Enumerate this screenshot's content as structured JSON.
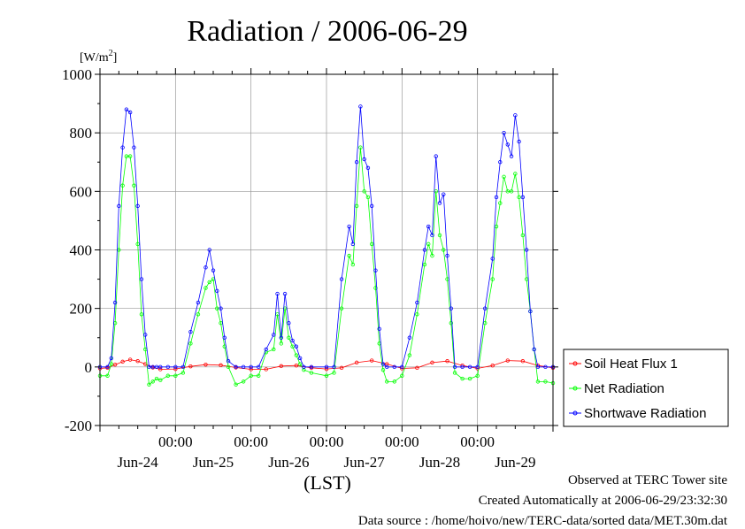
{
  "chart_data": {
    "type": "line",
    "title": "Radiation / 2006-06-29",
    "ylabel_unit": "[W/m",
    "ylabel_sup": "2",
    "ylabel_close": "]",
    "ylim": [
      -200,
      1000
    ],
    "yticks": [
      -200,
      0,
      200,
      400,
      600,
      800,
      1000
    ],
    "ytick_labels": [
      "-200",
      "0",
      "200",
      "400",
      "600",
      "800",
      "1000"
    ],
    "xlim": [
      0,
      6
    ],
    "xticks": [
      1,
      2,
      3,
      4,
      5
    ],
    "xtick_time_label": "00:00",
    "day_labels": [
      {
        "x": 0.5,
        "label": "Jun-24"
      },
      {
        "x": 1.5,
        "label": "Jun-25"
      },
      {
        "x": 2.5,
        "label": "Jun-26"
      },
      {
        "x": 3.5,
        "label": "Jun-27"
      },
      {
        "x": 4.5,
        "label": "Jun-28"
      },
      {
        "x": 5.5,
        "label": "Jun-29"
      }
    ],
    "xlabel": "(LST)",
    "grid": true,
    "legend_position": "right-bottom",
    "series": [
      {
        "name": "Soil Heat Flux 1",
        "color": "#ff0000",
        "x": [
          0.0,
          0.1,
          0.2,
          0.3,
          0.4,
          0.5,
          0.6,
          0.7,
          0.8,
          1.0,
          1.2,
          1.4,
          1.6,
          1.8,
          2.0,
          2.2,
          2.4,
          2.6,
          2.8,
          3.0,
          3.2,
          3.4,
          3.6,
          3.8,
          4.0,
          4.2,
          4.4,
          4.6,
          4.8,
          5.0,
          5.2,
          5.4,
          5.6,
          5.8,
          6.0
        ],
        "y": [
          -5,
          -3,
          8,
          18,
          25,
          20,
          10,
          -2,
          -8,
          -7,
          2,
          8,
          6,
          -2,
          -8,
          -8,
          3,
          5,
          -3,
          -7,
          -3,
          15,
          22,
          10,
          -5,
          -3,
          15,
          20,
          5,
          -5,
          5,
          22,
          20,
          5,
          -3
        ]
      },
      {
        "name": "Net Radiation",
        "color": "#00ff00",
        "x": [
          0.0,
          0.1,
          0.15,
          0.2,
          0.25,
          0.3,
          0.35,
          0.4,
          0.45,
          0.5,
          0.55,
          0.6,
          0.65,
          0.7,
          0.75,
          0.8,
          0.9,
          1.0,
          1.1,
          1.2,
          1.3,
          1.4,
          1.45,
          1.5,
          1.55,
          1.6,
          1.65,
          1.7,
          1.8,
          1.9,
          2.0,
          2.1,
          2.2,
          2.3,
          2.35,
          2.4,
          2.45,
          2.5,
          2.55,
          2.6,
          2.65,
          2.7,
          2.8,
          3.0,
          3.1,
          3.2,
          3.3,
          3.35,
          3.4,
          3.45,
          3.5,
          3.55,
          3.6,
          3.65,
          3.7,
          3.75,
          3.8,
          3.9,
          4.0,
          4.1,
          4.2,
          4.3,
          4.35,
          4.4,
          4.45,
          4.5,
          4.55,
          4.6,
          4.65,
          4.7,
          4.8,
          4.9,
          5.0,
          5.1,
          5.2,
          5.25,
          5.3,
          5.35,
          5.4,
          5.45,
          5.5,
          5.55,
          5.6,
          5.65,
          5.7,
          5.75,
          5.8,
          5.9,
          6.0
        ],
        "y": [
          -30,
          -30,
          10,
          150,
          400,
          620,
          720,
          720,
          620,
          420,
          180,
          60,
          -60,
          -50,
          -40,
          -45,
          -30,
          -30,
          -20,
          80,
          180,
          270,
          290,
          300,
          200,
          150,
          70,
          0,
          -60,
          -50,
          -30,
          -30,
          50,
          60,
          180,
          80,
          200,
          100,
          70,
          40,
          10,
          -10,
          -20,
          -30,
          -20,
          200,
          380,
          350,
          550,
          750,
          600,
          580,
          420,
          270,
          80,
          -10,
          -50,
          -50,
          -30,
          40,
          180,
          350,
          420,
          380,
          600,
          450,
          400,
          300,
          150,
          -20,
          -40,
          -40,
          -30,
          150,
          300,
          480,
          560,
          650,
          600,
          600,
          660,
          580,
          450,
          300,
          190,
          60,
          -50,
          -50,
          -55
        ]
      },
      {
        "name": "Shortwave Radiation",
        "color": "#0000ff",
        "x": [
          0.0,
          0.1,
          0.15,
          0.2,
          0.25,
          0.3,
          0.35,
          0.4,
          0.45,
          0.5,
          0.55,
          0.6,
          0.65,
          0.7,
          0.75,
          0.8,
          0.9,
          1.0,
          1.1,
          1.2,
          1.3,
          1.4,
          1.45,
          1.5,
          1.55,
          1.6,
          1.65,
          1.7,
          1.8,
          1.9,
          2.0,
          2.1,
          2.2,
          2.3,
          2.35,
          2.4,
          2.45,
          2.5,
          2.55,
          2.6,
          2.65,
          2.7,
          2.8,
          3.0,
          3.1,
          3.2,
          3.3,
          3.35,
          3.4,
          3.45,
          3.5,
          3.55,
          3.6,
          3.65,
          3.7,
          3.75,
          3.8,
          3.9,
          4.0,
          4.1,
          4.2,
          4.3,
          4.35,
          4.4,
          4.45,
          4.5,
          4.55,
          4.6,
          4.65,
          4.7,
          4.8,
          4.9,
          5.0,
          5.1,
          5.2,
          5.25,
          5.3,
          5.35,
          5.4,
          5.45,
          5.5,
          5.55,
          5.6,
          5.65,
          5.7,
          5.75,
          5.8,
          5.9,
          6.0
        ],
        "y": [
          0,
          0,
          30,
          220,
          550,
          750,
          880,
          870,
          750,
          550,
          300,
          110,
          0,
          0,
          0,
          0,
          0,
          0,
          0,
          120,
          220,
          340,
          400,
          330,
          260,
          200,
          100,
          20,
          0,
          0,
          0,
          0,
          60,
          110,
          250,
          100,
          250,
          150,
          90,
          70,
          30,
          0,
          0,
          0,
          0,
          300,
          480,
          420,
          700,
          890,
          710,
          680,
          550,
          330,
          130,
          10,
          0,
          0,
          0,
          100,
          220,
          400,
          480,
          450,
          720,
          560,
          590,
          380,
          200,
          0,
          0,
          0,
          0,
          200,
          370,
          580,
          700,
          800,
          760,
          720,
          860,
          770,
          580,
          400,
          190,
          60,
          0,
          0,
          0
        ]
      }
    ]
  },
  "footer": {
    "line1": "Observed at TERC Tower site",
    "line2": "Created Automatically at 2006-06-29/23:32:30",
    "line3": "Data source : /home/hoivo/new/TERC-data/sorted  data/MET.30m.dat"
  }
}
